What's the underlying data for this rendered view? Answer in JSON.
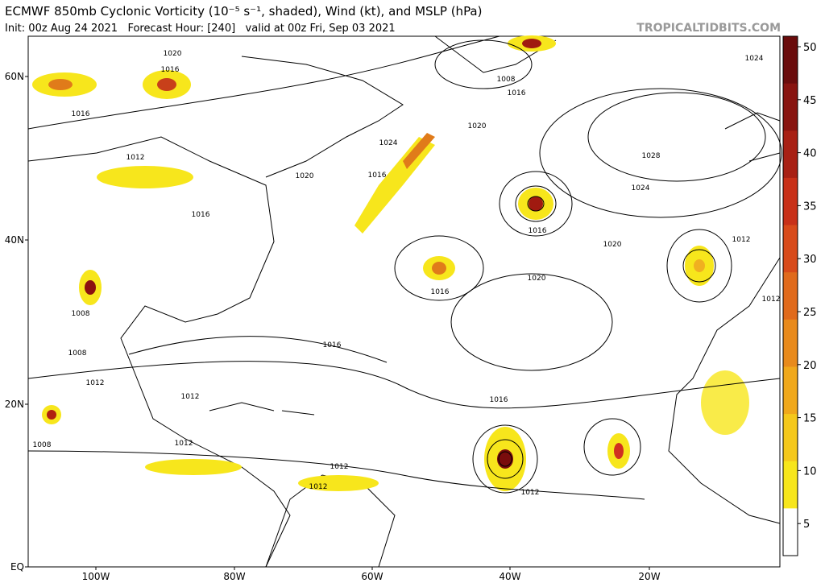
{
  "header": {
    "title": "ECMWF 850mb Cyclonic Vorticity (10⁻⁵ s⁻¹, shaded), Wind (kt), and MSLP (hPa)",
    "subtitle": "Init: 00z Aug 24 2021   Forecast Hour: [240]   valid at 00z Fri, Sep 03 2021",
    "source": "TROPICALTIDBITS.COM"
  },
  "map": {
    "lat_labels": [
      "60N",
      "40N",
      "20N",
      "EQ"
    ],
    "lon_labels": [
      "100W",
      "80W",
      "60W",
      "40W",
      "20W"
    ],
    "isobar_labels": [
      "1020",
      "1016",
      "1016",
      "1008",
      "1016",
      "1020",
      "1024",
      "1012",
      "1016",
      "1016",
      "1020",
      "1016",
      "1016",
      "1020",
      "1028",
      "1024",
      "1020",
      "1012",
      "1008",
      "1008",
      "1012",
      "1016",
      "1016",
      "1012",
      "1012",
      "1012",
      "1012",
      "1008",
      "1012",
      "1024",
      "1012"
    ]
  },
  "colorbar": {
    "ticks": [
      "50",
      "45",
      "40",
      "35",
      "30",
      "25",
      "20",
      "15",
      "10",
      "5"
    ]
  }
}
